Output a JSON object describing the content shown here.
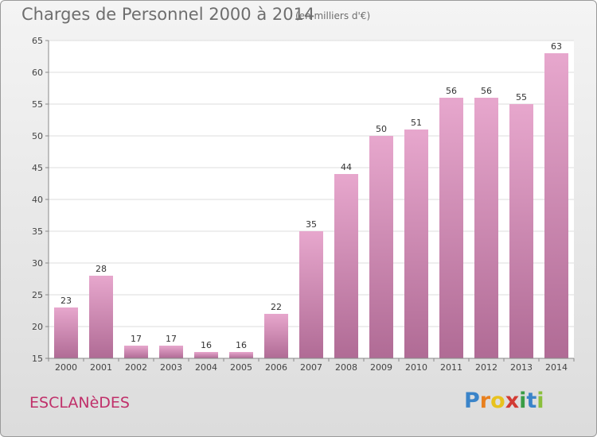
{
  "header": {
    "title": "Charges de Personnel 2000 à 2014",
    "subtitle": "(en milliers d'€)"
  },
  "footer": {
    "place": "ESCLANèDES",
    "brand_letters": [
      "P",
      "r",
      "o",
      "x",
      "i",
      "t",
      "i"
    ],
    "brand_colors": [
      "#3a84c9",
      "#e8801e",
      "#e8c21e",
      "#d23b34",
      "#3a9d46",
      "#3a84c9",
      "#8bbf3c"
    ]
  },
  "colors": {
    "bar_top": "#e7a7cd",
    "bar_bottom": "#b06b95",
    "grid": "#dddddd",
    "axis": "#888888"
  },
  "chart_data": {
    "type": "bar",
    "title": "Charges de Personnel 2000 à 2014",
    "subtitle": "(en milliers d'€)",
    "categories": [
      "2000",
      "2001",
      "2002",
      "2003",
      "2004",
      "2005",
      "2006",
      "2007",
      "2008",
      "2009",
      "2010",
      "2011",
      "2012",
      "2013",
      "2014"
    ],
    "values": [
      23,
      28,
      17,
      17,
      16,
      16,
      22,
      35,
      44,
      50,
      51,
      56,
      56,
      55,
      63
    ],
    "ylim": [
      15,
      65
    ],
    "yticks": [
      15,
      20,
      25,
      30,
      35,
      40,
      45,
      50,
      55,
      60,
      65
    ],
    "xlabel": "",
    "ylabel": "",
    "grid": true
  }
}
